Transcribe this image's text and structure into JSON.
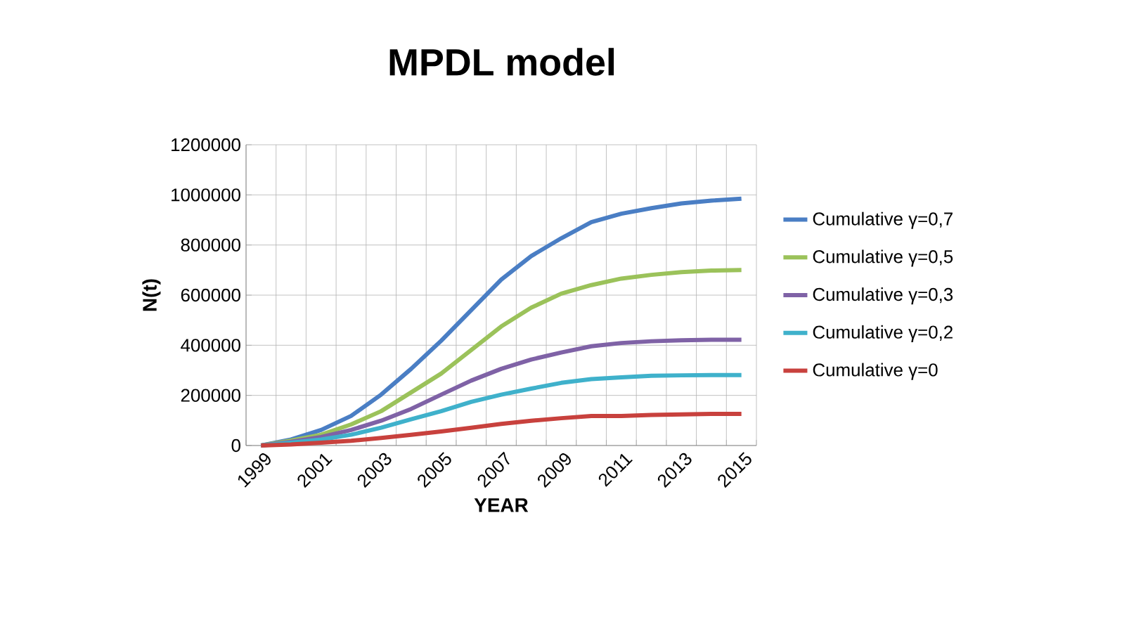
{
  "chart_data": {
    "type": "line",
    "title": "MPDL model",
    "xlabel": "YEAR",
    "ylabel": "N(t)",
    "categories": [
      "1999",
      null,
      "2001",
      null,
      "2003",
      null,
      "2005",
      null,
      "2007",
      null,
      "2009",
      null,
      "2011",
      null,
      "2013",
      null,
      "2015"
    ],
    "ylim": [
      0,
      1200000
    ],
    "yticks": [
      0,
      200000,
      400000,
      600000,
      800000,
      1000000,
      1200000
    ],
    "grid": true,
    "legend": "right",
    "marker": "none",
    "line_style": "solid",
    "series": [
      {
        "name": "Cumulative γ=0,7",
        "color": "#4a7ec4",
        "values": [
          0,
          24000,
          62000,
          118000,
          203000,
          306000,
          418000,
          540000,
          662000,
          756000,
          827000,
          891000,
          925000,
          947000,
          966000,
          977000,
          985000
        ]
      },
      {
        "name": "Cumulative γ=0,5",
        "color": "#9bc25a",
        "values": [
          0,
          20000,
          43000,
          84000,
          137000,
          212000,
          287000,
          381000,
          475000,
          550000,
          606000,
          640000,
          666000,
          681000,
          692000,
          698000,
          700000
        ]
      },
      {
        "name": "Cumulative γ=0,3",
        "color": "#7f62a6",
        "values": [
          0,
          15000,
          34000,
          62000,
          99000,
          146000,
          203000,
          259000,
          306000,
          343000,
          371000,
          396000,
          409000,
          416000,
          420000,
          422000,
          422000
        ]
      },
      {
        "name": "Cumulative γ=0,2",
        "color": "#3fb1cb",
        "values": [
          0,
          11000,
          24000,
          43000,
          71000,
          105000,
          137000,
          174000,
          203000,
          227000,
          250000,
          265000,
          272000,
          278000,
          280000,
          281000,
          281000
        ]
      },
      {
        "name": "Cumulative γ=0",
        "color": "#c8413d",
        "values": [
          0,
          4000,
          11000,
          19000,
          30000,
          43000,
          56000,
          71000,
          86000,
          99000,
          109000,
          118000,
          118000,
          122000,
          124000,
          126000,
          126000
        ]
      }
    ]
  }
}
